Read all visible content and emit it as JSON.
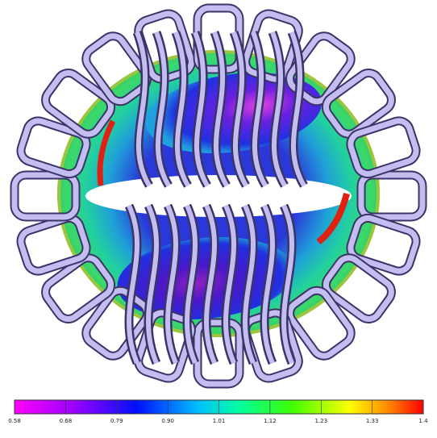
{
  "colorbar": {
    "labels": [
      "0.58",
      "0.68",
      "0.79",
      "0.90",
      "1.01",
      "1.12",
      "1.23",
      "1.33",
      "1.4"
    ]
  }
}
